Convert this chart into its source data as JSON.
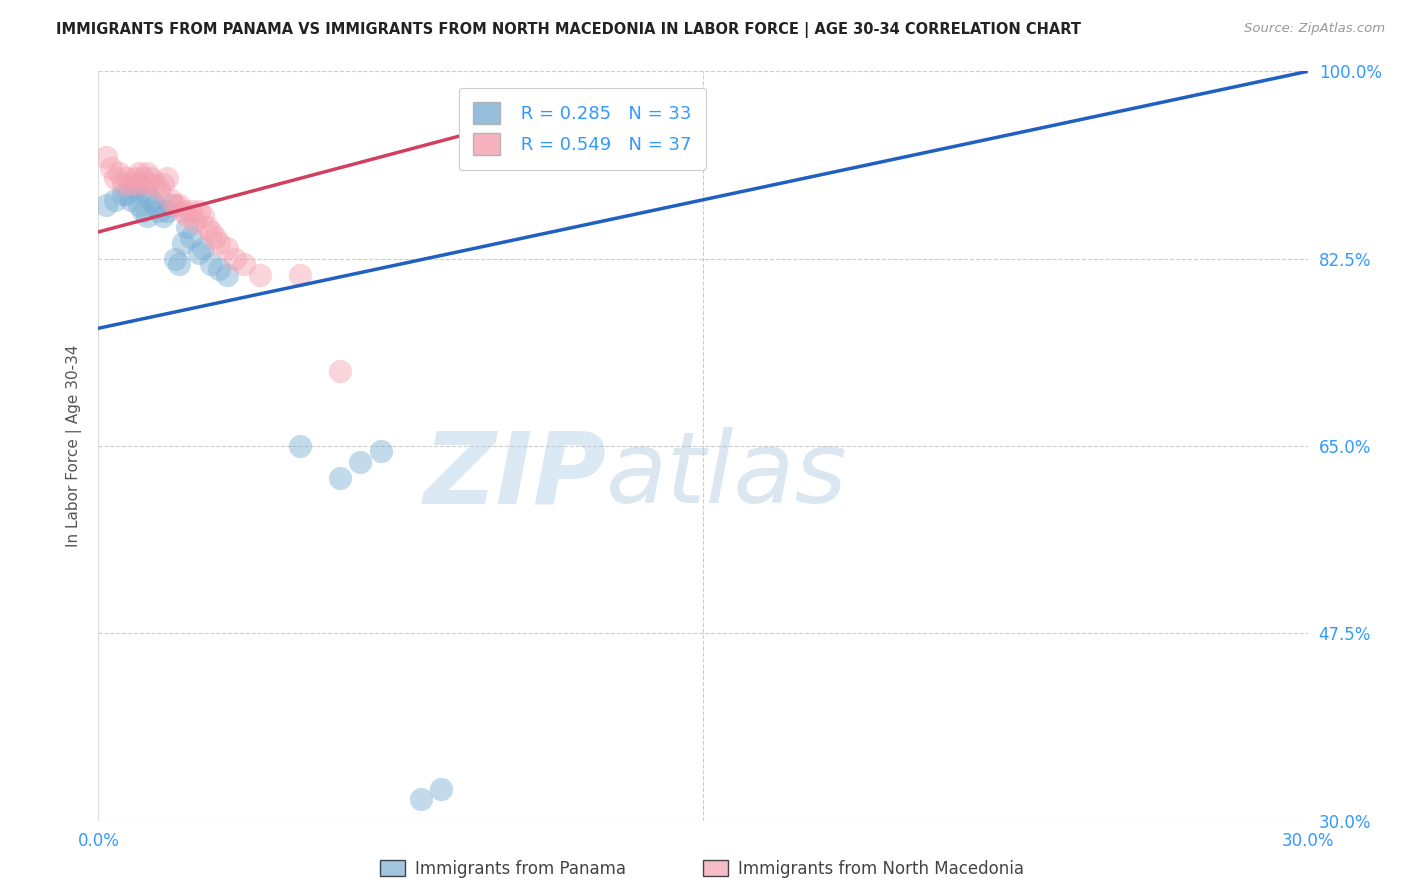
{
  "title": "IMMIGRANTS FROM PANAMA VS IMMIGRANTS FROM NORTH MACEDONIA IN LABOR FORCE | AGE 30-34 CORRELATION CHART",
  "source": "Source: ZipAtlas.com",
  "ylabel": "In Labor Force | Age 30-34",
  "xlim": [
    0.0,
    0.3
  ],
  "ylim": [
    0.3,
    1.0
  ],
  "xticks": [
    0.0,
    0.05,
    0.1,
    0.15,
    0.2,
    0.25,
    0.3
  ],
  "xticklabels": [
    "0.0%",
    "",
    "",
    "",
    "",
    "",
    "30.0%"
  ],
  "yticks": [
    0.3,
    0.475,
    0.65,
    0.825,
    1.0
  ],
  "yticklabels": [
    "30.0%",
    "47.5%",
    "65.0%",
    "82.5%",
    "100.0%"
  ],
  "panama_color": "#7bafd4",
  "macedonia_color": "#f4a0b0",
  "panama_line_color": "#2060c0",
  "macedonia_line_color": "#d04060",
  "panama_R": 0.285,
  "panama_N": 33,
  "macedonia_R": 0.549,
  "macedonia_N": 37,
  "legend_label_panama": "Immigrants from Panama",
  "legend_label_macedonia": "Immigrants from North Macedonia",
  "watermark_zip": "ZIP",
  "watermark_atlas": "atlas",
  "background_color": "#ffffff",
  "grid_color": "#cccccc",
  "panama_x": [
    0.002,
    0.004,
    0.006,
    0.007,
    0.008,
    0.009,
    0.01,
    0.01,
    0.011,
    0.012,
    0.012,
    0.013,
    0.014,
    0.015,
    0.016,
    0.017,
    0.018,
    0.019,
    0.02,
    0.021,
    0.022,
    0.023,
    0.025,
    0.026,
    0.028,
    0.03,
    0.032,
    0.05,
    0.06,
    0.065,
    0.07,
    0.08,
    0.085
  ],
  "panama_y": [
    0.875,
    0.88,
    0.885,
    0.885,
    0.88,
    0.89,
    0.895,
    0.875,
    0.87,
    0.865,
    0.885,
    0.88,
    0.875,
    0.87,
    0.865,
    0.87,
    0.875,
    0.825,
    0.82,
    0.84,
    0.855,
    0.845,
    0.83,
    0.835,
    0.82,
    0.815,
    0.81,
    0.65,
    0.62,
    0.635,
    0.645,
    0.32,
    0.33
  ],
  "macedonia_x": [
    0.002,
    0.003,
    0.004,
    0.005,
    0.006,
    0.007,
    0.008,
    0.009,
    0.01,
    0.01,
    0.011,
    0.012,
    0.012,
    0.013,
    0.014,
    0.015,
    0.016,
    0.017,
    0.018,
    0.019,
    0.02,
    0.021,
    0.022,
    0.023,
    0.024,
    0.025,
    0.026,
    0.027,
    0.028,
    0.029,
    0.03,
    0.032,
    0.034,
    0.036,
    0.04,
    0.05,
    0.06
  ],
  "macedonia_y": [
    0.92,
    0.91,
    0.9,
    0.905,
    0.895,
    0.9,
    0.895,
    0.9,
    0.895,
    0.905,
    0.9,
    0.895,
    0.905,
    0.9,
    0.895,
    0.89,
    0.895,
    0.9,
    0.88,
    0.875,
    0.875,
    0.87,
    0.865,
    0.87,
    0.86,
    0.87,
    0.865,
    0.855,
    0.85,
    0.845,
    0.84,
    0.835,
    0.825,
    0.82,
    0.81,
    0.81,
    0.72
  ],
  "panama_line_x0": 0.0,
  "panama_line_y0": 0.76,
  "panama_line_x1": 0.3,
  "panama_line_y1": 1.0,
  "macedonia_line_x0": 0.0,
  "macedonia_line_y0": 0.85,
  "macedonia_line_x1": 0.12,
  "macedonia_line_y1": 0.97
}
